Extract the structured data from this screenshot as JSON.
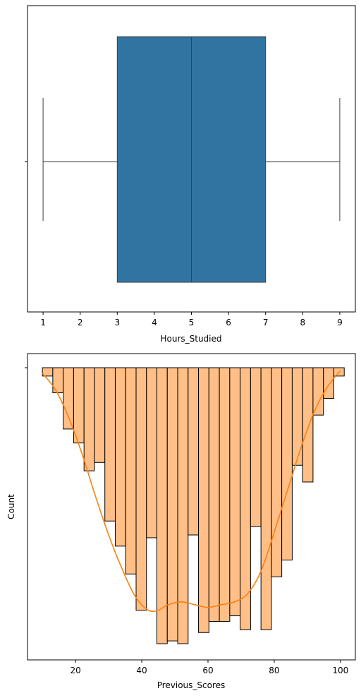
{
  "chart_data": [
    {
      "type": "box",
      "xlabel": "Hours_Studied",
      "xlim": [
        0.58,
        9.42
      ],
      "xticks": [
        1,
        2,
        3,
        4,
        5,
        6,
        7,
        8,
        9
      ],
      "box": {
        "min": 1,
        "q1": 3,
        "median": 5,
        "q3": 7,
        "max": 9
      },
      "box_color": "#3274a1"
    },
    {
      "type": "histogram",
      "xlabel": "Previous_Scores",
      "ylabel": "Count",
      "xlim": [
        5.5,
        104.5
      ],
      "xticks": [
        20,
        40,
        60,
        80,
        100
      ],
      "count_axis": "inverted",
      "count_range": [
        0,
        1
      ],
      "bin_edges": [
        10.0,
        13.14,
        16.28,
        19.43,
        22.57,
        25.71,
        28.86,
        32.0,
        35.14,
        38.29,
        41.43,
        44.57,
        47.71,
        50.86,
        54.0,
        57.14,
        60.28,
        63.43,
        66.57,
        69.71,
        72.86,
        76.0,
        79.14,
        82.28,
        85.43,
        88.57,
        91.71,
        94.86,
        98.0,
        101.14
      ],
      "counts": [
        0.03,
        0.09,
        0.22,
        0.27,
        0.37,
        0.34,
        0.55,
        0.64,
        0.74,
        0.87,
        0.61,
        0.99,
        0.98,
        0.99,
        0.6,
        0.95,
        0.91,
        0.91,
        0.89,
        0.94,
        0.57,
        0.94,
        0.75,
        0.69,
        0.35,
        0.41,
        0.17,
        0.11,
        0.03
      ],
      "kde": [
        [
          10,
          0.02
        ],
        [
          14,
          0.08
        ],
        [
          18,
          0.18
        ],
        [
          22,
          0.31
        ],
        [
          26,
          0.46
        ],
        [
          30,
          0.6
        ],
        [
          34,
          0.72
        ],
        [
          38,
          0.82
        ],
        [
          42,
          0.87
        ],
        [
          45,
          0.87
        ],
        [
          48,
          0.85
        ],
        [
          52,
          0.84
        ],
        [
          56,
          0.85
        ],
        [
          60,
          0.86
        ],
        [
          64,
          0.85
        ],
        [
          68,
          0.84
        ],
        [
          72,
          0.81
        ],
        [
          76,
          0.73
        ],
        [
          80,
          0.59
        ],
        [
          84,
          0.44
        ],
        [
          88,
          0.29
        ],
        [
          92,
          0.16
        ],
        [
          96,
          0.07
        ],
        [
          100,
          0.01
        ]
      ],
      "bar_color": "#ffbf86",
      "kde_color": "#ff7f0e"
    }
  ]
}
